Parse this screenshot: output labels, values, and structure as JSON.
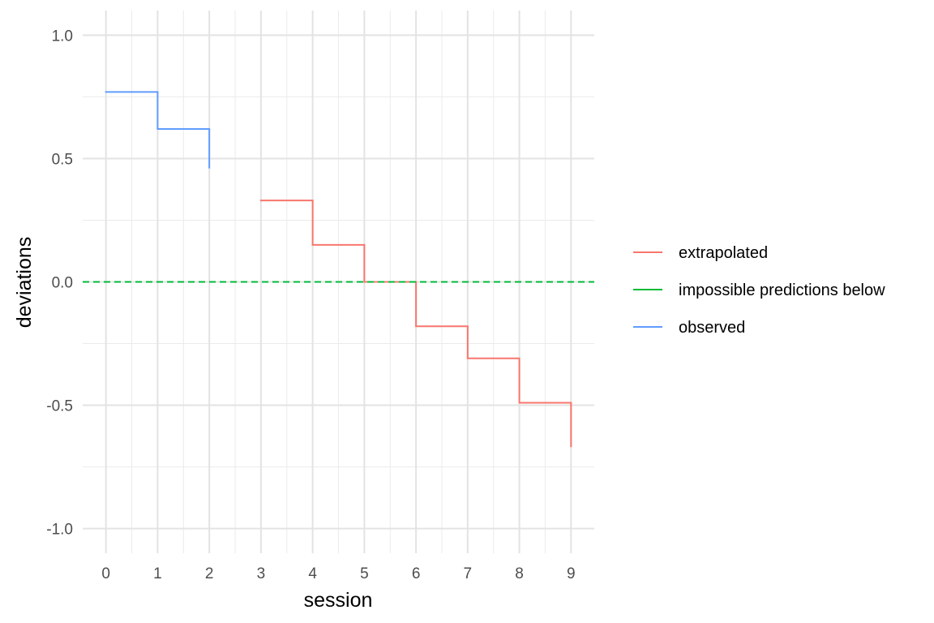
{
  "chart_data": {
    "type": "line",
    "line_style": "step",
    "xlabel": "session",
    "ylabel": "deviations",
    "xlim": [
      -0.45,
      9.45
    ],
    "ylim": [
      -1.1,
      1.1
    ],
    "x_ticks": [
      0,
      1,
      2,
      3,
      4,
      5,
      6,
      7,
      8,
      9
    ],
    "x_tick_labels": [
      "0",
      "1",
      "2",
      "3",
      "4",
      "5",
      "6",
      "7",
      "8",
      "9"
    ],
    "y_ticks": [
      1.0,
      0.5,
      0.0,
      -0.5,
      -1.0
    ],
    "y_tick_labels": [
      "1.0",
      "0.5",
      "0.0",
      "-0.5",
      "-1.0"
    ],
    "grid": true,
    "legend_position": "right",
    "series": [
      {
        "name": "extrapolated",
        "color": "#F8766D",
        "style": "solid",
        "steps": [
          {
            "x0": 3,
            "x1": 4,
            "y": 0.33
          },
          {
            "x0": 4,
            "x1": 5,
            "y": 0.15
          },
          {
            "x0": 5,
            "x1": 6,
            "y": 0.0
          },
          {
            "x0": 6,
            "x1": 7,
            "y": -0.18
          },
          {
            "x0": 7,
            "x1": 8,
            "y": -0.31
          },
          {
            "x0": 8,
            "x1": 9,
            "y": -0.49
          }
        ],
        "end": {
          "x": 9,
          "y": -0.67
        }
      },
      {
        "name": "impossible predictions below",
        "color": "#00BA38",
        "style": "dashed",
        "hline": 0.0
      },
      {
        "name": "observed",
        "color": "#619CFF",
        "style": "solid",
        "steps": [
          {
            "x0": 0,
            "x1": 1,
            "y": 0.77
          },
          {
            "x0": 1,
            "x1": 2,
            "y": 0.62
          }
        ],
        "end": {
          "x": 2,
          "y": 0.46
        }
      }
    ]
  }
}
